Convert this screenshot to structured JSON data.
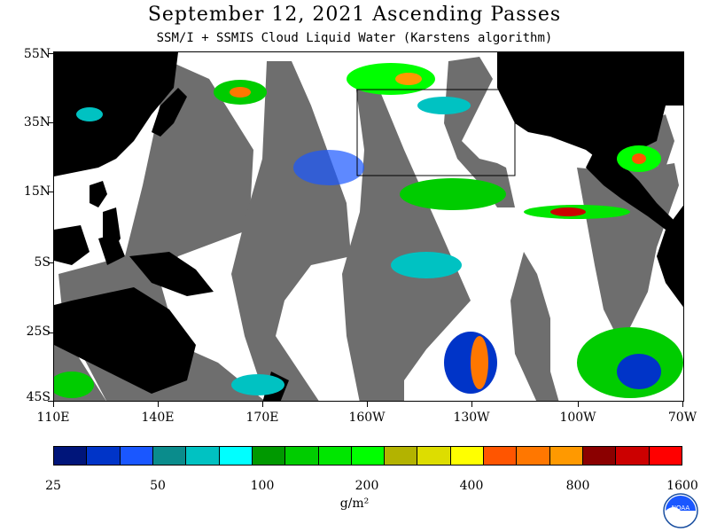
{
  "title": "September 12, 2021  Ascending Passes",
  "subtitle": "SSM/I + SSMIS Cloud Liquid Water (Karstens algorithm)",
  "map": {
    "lat_labels": [
      "55N",
      "35N",
      "15N",
      "5S",
      "25S",
      "45S"
    ],
    "lon_labels": [
      "110E",
      "140E",
      "170E",
      "160W",
      "130W",
      "100W",
      "70W"
    ],
    "colors": {
      "land": "#000000",
      "no_data_swath_gap": "#6e6e6e",
      "clear_ocean": "#ffffff",
      "box_outline": "#000000"
    }
  },
  "colorbar": {
    "colors": [
      "#00157a",
      "#0034c8",
      "#1a57ff",
      "#0a8c8c",
      "#00c2c2",
      "#00ffff",
      "#009900",
      "#00cc00",
      "#00e600",
      "#00ff00",
      "#b3b300",
      "#dddd00",
      "#ffff00",
      "#ff5500",
      "#ff7700",
      "#ff9900",
      "#8b0000",
      "#cc0000",
      "#ff0000"
    ],
    "tick_labels": [
      "25",
      "50",
      "100",
      "200",
      "400",
      "800",
      "1600"
    ],
    "units": "g/m²"
  },
  "logo": {
    "icon": "noaa-logo-icon",
    "text": "NOAA"
  }
}
